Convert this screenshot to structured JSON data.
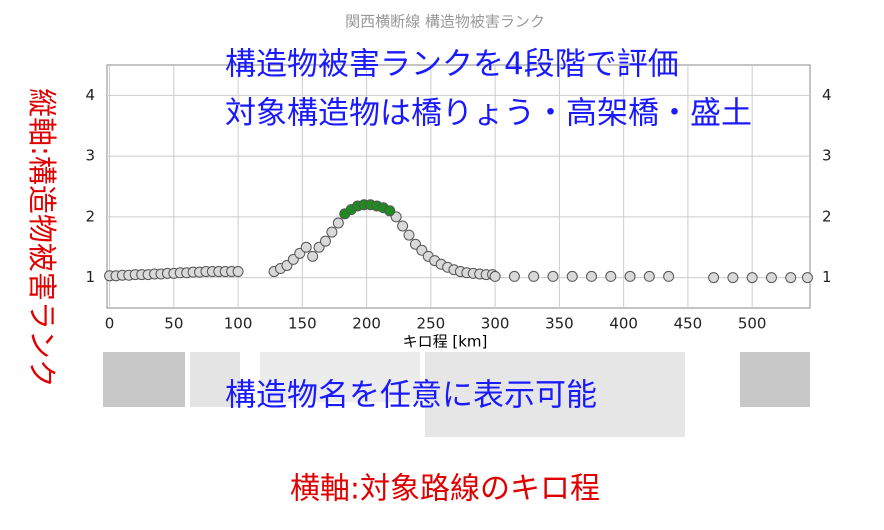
{
  "chart_data": {
    "type": "scatter",
    "title": "関西横断線 構造物被害ランク",
    "x_label": "キロ程 [km]",
    "xlim": [
      -2,
      545
    ],
    "xticks": [
      0,
      50,
      100,
      150,
      200,
      250,
      300,
      350,
      400,
      450,
      500
    ],
    "ylim": [
      0.5,
      4.5
    ],
    "yticks": [
      1,
      2,
      3,
      4
    ],
    "grid": true,
    "series": [
      {
        "color": "#d9d9d9",
        "x": [
          0,
          5,
          10,
          15,
          20,
          25,
          30,
          35,
          40,
          45,
          50,
          55,
          60,
          65,
          70,
          75,
          80,
          85,
          90,
          95,
          100,
          128,
          133,
          138,
          143,
          148,
          153,
          158,
          163,
          168,
          173,
          178,
          223,
          228,
          233,
          238,
          243,
          248,
          253,
          258,
          263,
          268,
          273,
          278,
          283,
          288,
          293,
          298,
          300,
          315,
          330,
          345,
          360,
          375,
          390,
          405,
          420,
          435,
          470,
          485,
          500,
          515,
          530,
          543
        ],
        "values": [
          1.03,
          1.03,
          1.04,
          1.04,
          1.05,
          1.05,
          1.05,
          1.06,
          1.06,
          1.07,
          1.07,
          1.08,
          1.08,
          1.09,
          1.09,
          1.1,
          1.1,
          1.1,
          1.1,
          1.1,
          1.1,
          1.1,
          1.15,
          1.2,
          1.3,
          1.4,
          1.5,
          1.35,
          1.5,
          1.6,
          1.75,
          1.9,
          2.0,
          1.85,
          1.7,
          1.55,
          1.45,
          1.35,
          1.28,
          1.22,
          1.17,
          1.13,
          1.1,
          1.08,
          1.07,
          1.06,
          1.05,
          1.05,
          1.02,
          1.02,
          1.02,
          1.02,
          1.02,
          1.02,
          1.02,
          1.02,
          1.02,
          1.02,
          1.0,
          1.0,
          1.0,
          1.0,
          1.0,
          1.0
        ]
      },
      {
        "color": "#1e8c1e",
        "x": [
          183,
          188,
          193,
          198,
          203,
          208,
          213,
          218
        ],
        "values": [
          2.05,
          2.12,
          2.18,
          2.2,
          2.2,
          2.18,
          2.15,
          2.1
        ]
      }
    ],
    "annotations": [
      "構造物被害ランクを4段階で評価",
      "対象構造物は橋りょう・高架橋・盛土",
      "構造物名を任意に表示可能",
      "縦軸:構造物被害ランク",
      "横軸:対象路線のキロ程"
    ]
  }
}
